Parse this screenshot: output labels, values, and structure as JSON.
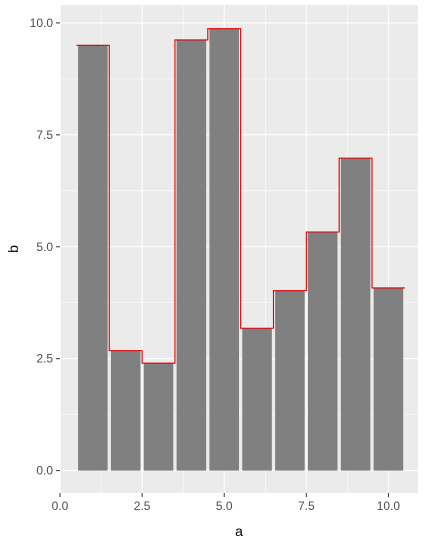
{
  "chart_data": {
    "type": "bar",
    "xlabel": "a",
    "ylabel": "b",
    "x": [
      1,
      2,
      3,
      4,
      5,
      6,
      7,
      8,
      9,
      10
    ],
    "values": [
      9.5,
      2.68,
      2.4,
      9.62,
      9.87,
      3.18,
      4.02,
      5.33,
      6.98,
      4.08
    ],
    "xlim": [
      0,
      10.9
    ],
    "ylim": [
      -0.5,
      10.4
    ],
    "x_ticks": [
      0,
      2.5,
      5,
      7.5,
      10
    ],
    "x_tick_labels": [
      "0.0",
      "2.5",
      "5.0",
      "7.5",
      "10.0"
    ],
    "y_ticks": [
      0,
      2.5,
      5,
      7.5,
      10
    ],
    "y_tick_labels": [
      "0.0",
      "2.5",
      "5.0",
      "7.5",
      "10.0"
    ],
    "bar_width": 0.9,
    "grid": true,
    "overlay": {
      "type": "step",
      "color": "#e00000",
      "x": [
        0.5,
        1.5,
        1.5,
        2.5,
        2.5,
        3.5,
        3.5,
        4.5,
        4.5,
        5.5,
        5.5,
        6.5,
        6.5,
        7.5,
        7.5,
        8.5,
        8.5,
        9.5,
        9.5,
        10.5
      ],
      "y": [
        9.5,
        9.5,
        2.68,
        2.68,
        2.4,
        2.4,
        9.62,
        9.62,
        9.87,
        9.87,
        3.18,
        3.18,
        4.02,
        4.02,
        5.33,
        5.33,
        6.98,
        6.98,
        4.08,
        4.08
      ]
    },
    "colors": {
      "panel": "#ebebeb",
      "grid_major": "#ffffff",
      "bar": "#808080",
      "tick": "#333333"
    }
  }
}
